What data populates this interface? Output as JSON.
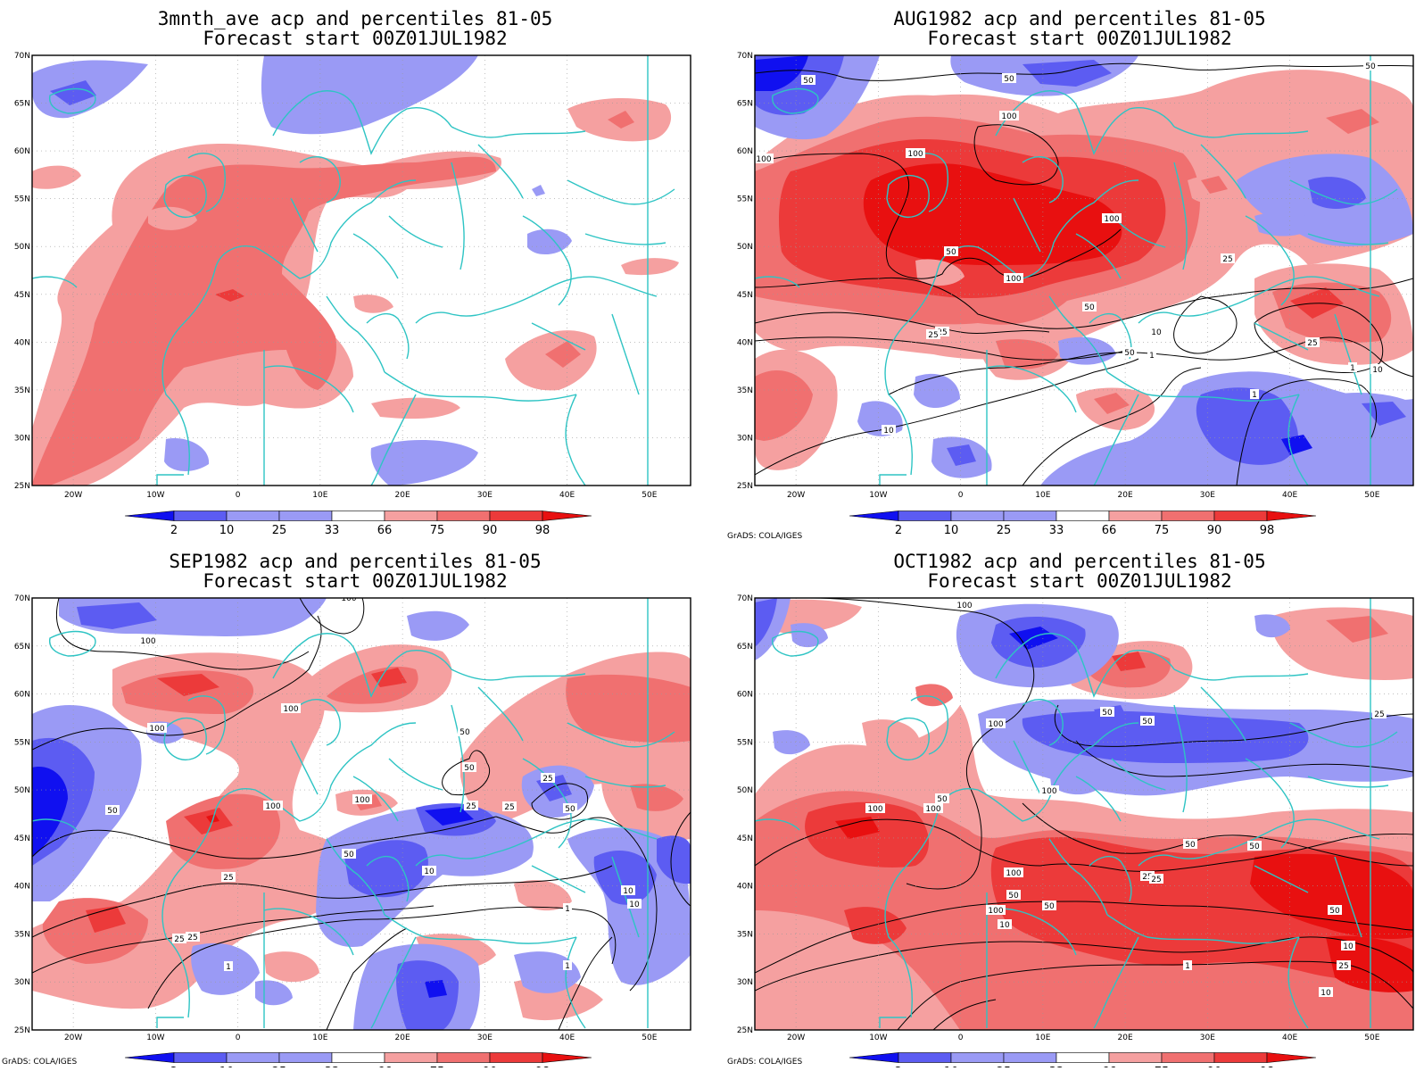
{
  "colors": {
    "c2": "#1010f0",
    "c10": "#5c5cf2",
    "c25": "#9a9af5",
    "c33": "#ffffff",
    "c66": "#f5a0a0",
    "c75": "#f07070",
    "c90": "#ec3a3a",
    "c98": "#e81010",
    "coast": "#2ec4c4",
    "contour": "#000000"
  },
  "axes": {
    "lat_labels": [
      "70N",
      "65N",
      "60N",
      "55N",
      "50N",
      "45N",
      "40N",
      "35N",
      "30N",
      "25N"
    ],
    "lon_labels": [
      "20W",
      "10W",
      "0",
      "10E",
      "20E",
      "30E",
      "40E",
      "50E"
    ]
  },
  "colorbar": {
    "labels": [
      "2",
      "10",
      "25",
      "33",
      "66",
      "75",
      "90",
      "98"
    ]
  },
  "panels": [
    {
      "id": "p1",
      "title_line1": "3mnth_ave acp and percentiles 81-05",
      "title_line2": "Forecast start 00Z01JUL1982",
      "credit": "",
      "contour_labels": []
    },
    {
      "id": "p2",
      "title_line1": "AUG1982 acp and percentiles 81-05",
      "title_line2": "Forecast start 00Z01JUL1982",
      "credit": "GrADS: COLA/IGES",
      "contour_labels": [
        "50",
        "50",
        "50",
        "100",
        "100",
        "100",
        "100",
        "50",
        "100",
        "25",
        "50",
        "25",
        "50",
        "25",
        "10",
        "1",
        "25",
        "10",
        "1",
        "1",
        "10"
      ]
    },
    {
      "id": "p3",
      "title_line1": "SEP1982 acp and percentiles 81-05",
      "title_line2": "Forecast start 00Z01JUL1982",
      "credit": "GrADS: COLA/IGES",
      "contour_labels": [
        "100",
        "100",
        "100",
        "100",
        "50",
        "50",
        "100",
        "100",
        "50",
        "25",
        "25",
        "25",
        "50",
        "50",
        "10",
        "25",
        "25",
        "10",
        "25",
        "10",
        "1",
        "1",
        "1"
      ]
    },
    {
      "id": "p4",
      "title_line1": "OCT1982 acp and percentiles 81-05",
      "title_line2": "Forecast start 00Z01JUL1982",
      "credit": "GrADS: COLA/IGES",
      "contour_labels": [
        "100",
        "100",
        "50",
        "50",
        "50",
        "25",
        "100",
        "100",
        "100",
        "100",
        "50",
        "50",
        "50",
        "100",
        "25",
        "50",
        "25",
        "50",
        "10",
        "10",
        "1",
        "25",
        "10"
      ]
    }
  ]
}
